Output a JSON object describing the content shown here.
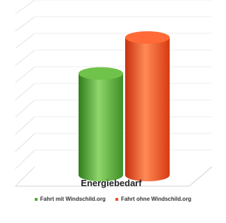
{
  "chart_data": {
    "type": "bar",
    "categories": [
      "Energiebedarf"
    ],
    "series": [
      {
        "name": "Fahrt mit Windschild.org",
        "values": [
          65
        ],
        "color": "#4fa832"
      },
      {
        "name": "Fahrt ohne Windschild.org",
        "values": [
          88
        ],
        "color": "#f04a1e"
      }
    ],
    "ylim": [
      0,
      100
    ],
    "grid": true,
    "three_d": true,
    "legend_position": "bottom"
  }
}
